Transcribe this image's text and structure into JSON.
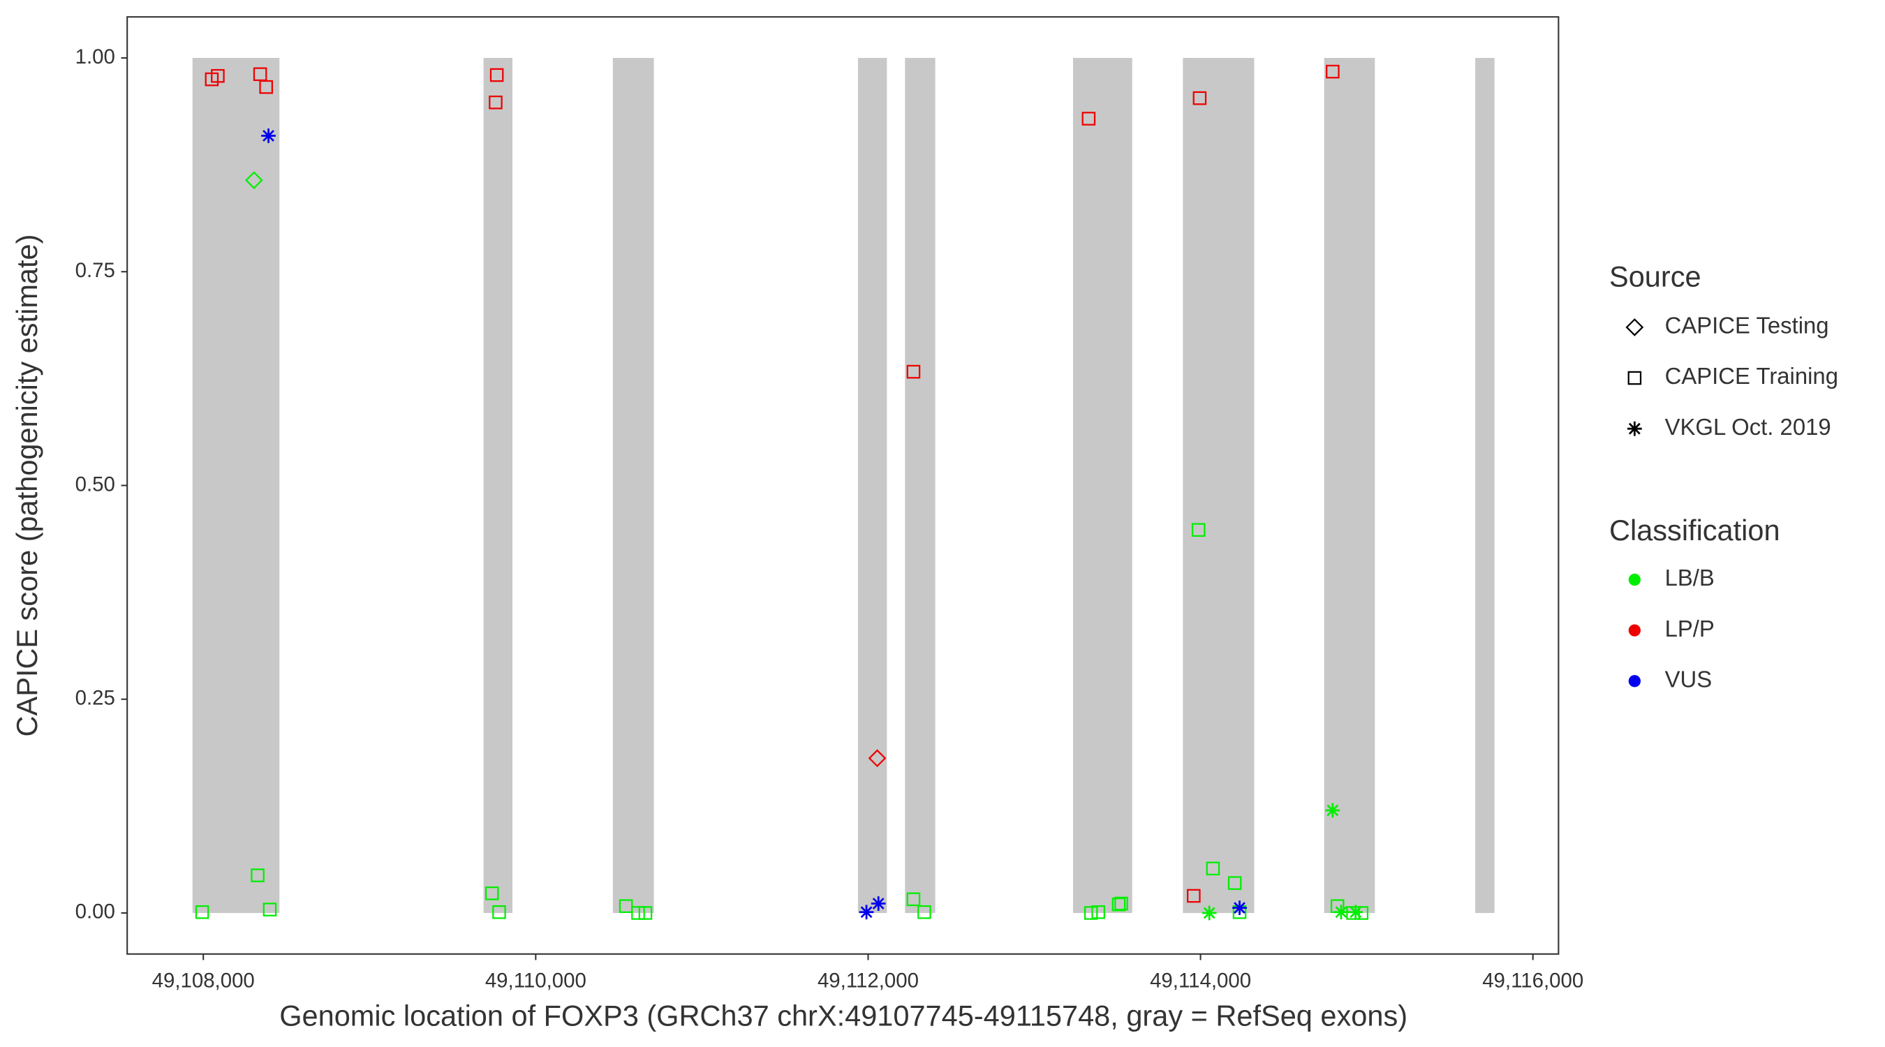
{
  "chart_data": {
    "type": "scatter",
    "x_label": "Genomic location of FOXP3 (GRCh37 chrX:49107745-49115748, gray = RefSeq exons)",
    "y_label": "CAPICE score (pathogenicity estimate)",
    "xlim": [
      49107542,
      49116154
    ],
    "ylim": [
      -0.048,
      1.048
    ],
    "xticks": [
      {
        "value": 49108000,
        "label": "49,108,000"
      },
      {
        "value": 49110000,
        "label": "49,110,000"
      },
      {
        "value": 49112000,
        "label": "49,112,000"
      },
      {
        "value": 49114000,
        "label": "49,114,000"
      },
      {
        "value": 49116000,
        "label": "49,116,000"
      }
    ],
    "yticks": [
      {
        "value": 0,
        "label": "0.00"
      },
      {
        "value": 0.25,
        "label": "0.25"
      },
      {
        "value": 0.5,
        "label": "0.50"
      },
      {
        "value": 0.75,
        "label": "0.75"
      },
      {
        "value": 1,
        "label": "1.00"
      }
    ],
    "grid": false,
    "exon_color": "#c8c8c8",
    "exons": [
      [
        49107935,
        49108458
      ],
      [
        49109686,
        49109860
      ],
      [
        49110464,
        49110711
      ],
      [
        49111939,
        49112113
      ],
      [
        49112222,
        49112404
      ],
      [
        49113233,
        49113589
      ],
      [
        49113894,
        49114323
      ],
      [
        49114744,
        49115049
      ],
      [
        49115653,
        49115769
      ]
    ],
    "source_legend_title": "Source",
    "classification_legend_title": "Classification",
    "classifications": [
      {
        "name": "LB/B",
        "color": "#00ee00"
      },
      {
        "name": "LP/P",
        "color": "#ee0000"
      },
      {
        "name": "VUS",
        "color": "#0000ee"
      }
    ],
    "series": [
      {
        "name": "CAPICE Testing",
        "shape": "diamond",
        "x": [
          49108305,
          49112055
        ],
        "y": [
          0.857,
          0.181
        ],
        "classification": [
          "LB/B",
          "LP/P"
        ]
      },
      {
        "name": "CAPICE Training",
        "shape": "square",
        "x": [
          49108051,
          49108087,
          49108342,
          49108378,
          49109766,
          49109759,
          49112273,
          49113327,
          49113995,
          49114795,
          49113959,
          49107993,
          49108327,
          49108400,
          49109737,
          49109780,
          49110543,
          49110616,
          49110660,
          49112273,
          49112338,
          49113341,
          49113385,
          49113508,
          49113523,
          49113988,
          49114075,
          49114206,
          49114235,
          49114824,
          49114918,
          49114969
        ],
        "y": [
          0.975,
          0.979,
          0.981,
          0.966,
          0.98,
          0.948,
          0.633,
          0.929,
          0.953,
          0.984,
          0.02,
          0.001,
          0.044,
          0.004,
          0.023,
          0.001,
          0.008,
          0,
          0,
          0.016,
          0.001,
          0,
          0.001,
          0.01,
          0.011,
          0.448,
          0.052,
          0.035,
          0.001,
          0.008,
          0,
          0
        ],
        "classification": [
          "LP/P",
          "LP/P",
          "LP/P",
          "LP/P",
          "LP/P",
          "LP/P",
          "LP/P",
          "LP/P",
          "LP/P",
          "LP/P",
          "LP/P",
          "LB/B",
          "LB/B",
          "LB/B",
          "LB/B",
          "LB/B",
          "LB/B",
          "LB/B",
          "LB/B",
          "LB/B",
          "LB/B",
          "LB/B",
          "LB/B",
          "LB/B",
          "LB/B",
          "LB/B",
          "LB/B",
          "LB/B",
          "LB/B",
          "LB/B",
          "LB/B",
          "LB/B"
        ]
      },
      {
        "name": "VKGL Oct. 2019",
        "shape": "star",
        "x": [
          49108392,
          49111990,
          49112062,
          49114235,
          49114795,
          49114053,
          49114846,
          49114933
        ],
        "y": [
          0.909,
          0.001,
          0.011,
          0.006,
          0.12,
          0,
          0.001,
          0.001
        ],
        "classification": [
          "VUS",
          "VUS",
          "VUS",
          "VUS",
          "LB/B",
          "LB/B",
          "LB/B",
          "LB/B"
        ]
      }
    ]
  }
}
